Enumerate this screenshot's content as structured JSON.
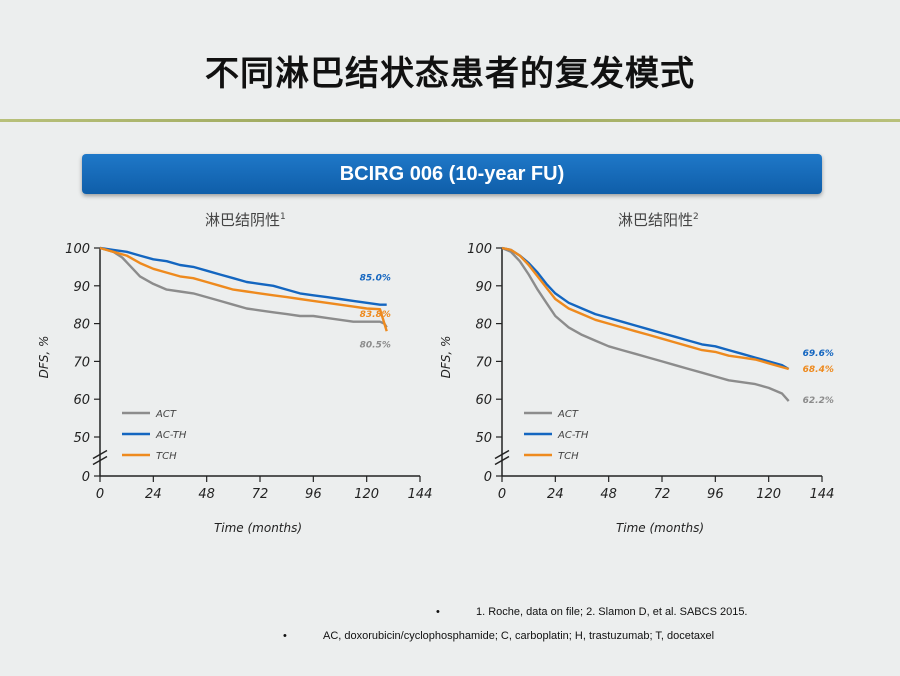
{
  "page": {
    "title": "不同淋巴结状态患者的复发模式",
    "banner": "BCIRG 006 (10-year FU)",
    "footnotes": [
      "1. Roche, data on file; 2. Slamon D, et al. SABCS 2015.",
      "AC, doxorubicin/cyclophosphamide; C, carboplatin; H, trastuzumab; T, docetaxel"
    ]
  },
  "colors": {
    "ACT": "#8c8c8c",
    "AC-TH": "#1466c0",
    "TCH": "#ee8a1e"
  },
  "chart_data": [
    {
      "type": "line",
      "title": "淋巴结阴性",
      "title_sup": "1",
      "xlabel": "Time (months)",
      "ylabel": "DFS, %",
      "xlim": [
        0,
        144
      ],
      "ylim": [
        50,
        100
      ],
      "x_ticks": [
        0,
        24,
        48,
        72,
        96,
        120,
        144
      ],
      "y_ticks": [
        0,
        50,
        60,
        70,
        80,
        90,
        100
      ],
      "axis_break": true,
      "legend": [
        "ACT",
        "AC-TH",
        "TCH"
      ],
      "legend_position": "bottom-left",
      "series": [
        {
          "name": "ACT",
          "end_label": "80.5%",
          "x": [
            0,
            6,
            10,
            14,
            18,
            24,
            30,
            36,
            42,
            48,
            54,
            60,
            66,
            72,
            78,
            84,
            90,
            96,
            102,
            108,
            114,
            120,
            126,
            128,
            129
          ],
          "y": [
            100,
            99,
            97.5,
            95,
            92.5,
            90.5,
            89,
            88.5,
            88,
            87,
            86,
            85,
            84,
            83.5,
            83,
            82.5,
            82,
            82,
            81.5,
            81,
            80.5,
            80.5,
            80.5,
            80,
            79
          ]
        },
        {
          "name": "AC-TH",
          "end_label": "85.0%",
          "x": [
            0,
            6,
            12,
            18,
            24,
            30,
            36,
            42,
            48,
            54,
            60,
            66,
            72,
            78,
            84,
            90,
            96,
            102,
            108,
            114,
            120,
            126,
            129
          ],
          "y": [
            100,
            99.5,
            99,
            98,
            97,
            96.5,
            95.5,
            95,
            94,
            93,
            92,
            91,
            90.5,
            90,
            89,
            88,
            87.5,
            87,
            86.5,
            86,
            85.5,
            85,
            85
          ]
        },
        {
          "name": "TCH",
          "end_label": "83.8%",
          "x": [
            0,
            6,
            12,
            18,
            24,
            30,
            36,
            42,
            48,
            54,
            60,
            66,
            72,
            78,
            84,
            90,
            96,
            102,
            108,
            114,
            120,
            126,
            128,
            129
          ],
          "y": [
            100,
            99,
            98,
            96,
            94.5,
            93.5,
            92.5,
            92,
            91,
            90,
            89,
            88.5,
            88,
            87.5,
            87,
            86.5,
            86,
            85.5,
            85,
            84.5,
            84,
            83.8,
            80,
            78
          ]
        }
      ]
    },
    {
      "type": "line",
      "title": "淋巴结阳性",
      "title_sup": "2",
      "xlabel": "Time (months)",
      "ylabel": "DFS, %",
      "xlim": [
        0,
        144
      ],
      "ylim": [
        50,
        100
      ],
      "x_ticks": [
        0,
        24,
        48,
        72,
        96,
        120,
        144
      ],
      "y_ticks": [
        0,
        50,
        60,
        70,
        80,
        90,
        100
      ],
      "axis_break": true,
      "legend": [
        "ACT",
        "AC-TH",
        "TCH"
      ],
      "legend_position": "bottom-left",
      "series": [
        {
          "name": "ACT",
          "end_label": "62.2%",
          "x": [
            0,
            4,
            8,
            12,
            16,
            20,
            24,
            30,
            36,
            42,
            48,
            54,
            60,
            66,
            72,
            78,
            84,
            90,
            96,
            102,
            108,
            114,
            120,
            126,
            129
          ],
          "y": [
            100,
            99,
            96.5,
            93,
            89,
            85.5,
            82,
            79,
            77,
            75.5,
            74,
            73,
            72,
            71,
            70,
            69,
            68,
            67,
            66,
            65,
            64.5,
            64,
            63,
            61.5,
            59.5
          ]
        },
        {
          "name": "AC-TH",
          "end_label": "69.6%",
          "x": [
            0,
            4,
            8,
            12,
            16,
            20,
            24,
            30,
            36,
            42,
            48,
            54,
            60,
            66,
            72,
            78,
            84,
            90,
            96,
            102,
            108,
            114,
            120,
            126,
            129
          ],
          "y": [
            100,
            99.5,
            98,
            96,
            93.5,
            90.5,
            88,
            85.5,
            84,
            82.5,
            81.5,
            80.5,
            79.5,
            78.5,
            77.5,
            76.5,
            75.5,
            74.5,
            74,
            73,
            72,
            71,
            70,
            69,
            68
          ]
        },
        {
          "name": "TCH",
          "end_label": "68.4%",
          "x": [
            0,
            4,
            8,
            12,
            16,
            20,
            24,
            30,
            36,
            42,
            48,
            54,
            60,
            66,
            72,
            78,
            84,
            90,
            96,
            102,
            108,
            114,
            120,
            126,
            129
          ],
          "y": [
            100,
            99.5,
            98,
            95.5,
            92.5,
            89.5,
            86.5,
            84,
            82.5,
            81,
            80,
            79,
            78,
            77,
            76,
            75,
            74,
            73,
            72.5,
            71.5,
            71,
            70.5,
            69.5,
            68.5,
            68
          ]
        }
      ]
    }
  ]
}
